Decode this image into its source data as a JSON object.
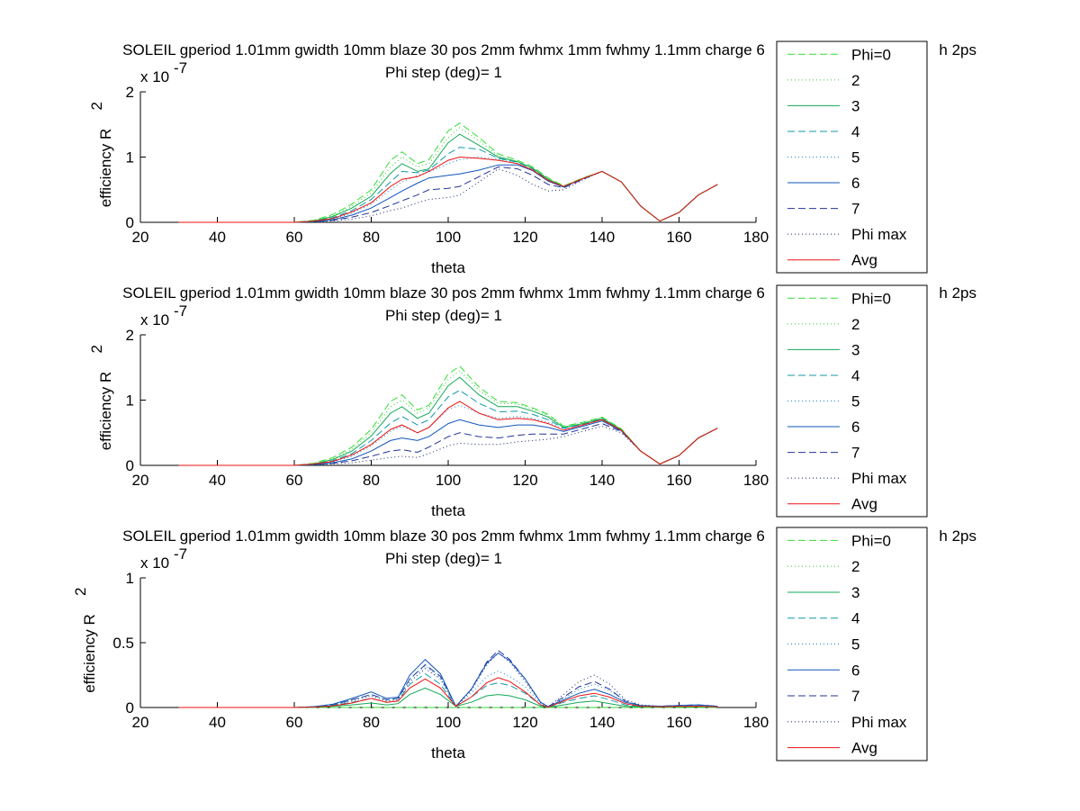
{
  "legend": [
    "Phi=0",
    "2",
    "3",
    "4",
    "5",
    "6",
    "7",
    "Phi max",
    "Avg"
  ],
  "series_styles": [
    {
      "color": "#33dd33",
      "dash": "8,4"
    },
    {
      "color": "#33cc33",
      "dash": "1,3"
    },
    {
      "color": "#11aa55",
      "dash": ""
    },
    {
      "color": "#1199aa",
      "dash": "8,4"
    },
    {
      "color": "#1188cc",
      "dash": "1,3"
    },
    {
      "color": "#1155bb",
      "dash": ""
    },
    {
      "color": "#223399",
      "dash": "8,4"
    },
    {
      "color": "#112266",
      "dash": "1,3"
    },
    {
      "color": "#ee1111",
      "dash": ""
    }
  ],
  "chart_data": [
    {
      "type": "line",
      "title": "SOLEIL gperiod 1.01mm gwidth 10mm blaze 30 pos 2mm fwhmx 1mm fwhmy 1.1mm charge 6",
      "title_suffix": "h 2ps",
      "subtitle": "Phi step (deg)= 1",
      "xlabel": "theta",
      "ylabel": "efficiency R",
      "ylabel_sup": "2",
      "y_exponent": "x 10",
      "y_exponent_sup": "-7",
      "xlim": [
        20,
        180
      ],
      "ylim": [
        0,
        2
      ],
      "xticks": [
        "20",
        "40",
        "60",
        "80",
        "100",
        "120",
        "140",
        "160",
        "180"
      ],
      "yticks": [
        "0",
        "1",
        "2"
      ],
      "x": [
        30,
        60,
        65,
        70,
        75,
        80,
        85,
        88,
        92,
        95,
        100,
        103,
        108,
        113,
        118,
        122,
        126,
        130,
        135,
        140,
        145,
        150,
        155,
        160,
        165,
        170
      ],
      "series": [
        {
          "name": "Phi=0",
          "values": [
            0,
            0,
            0.03,
            0.12,
            0.28,
            0.5,
            0.95,
            1.08,
            0.9,
            0.96,
            1.4,
            1.52,
            1.3,
            1.05,
            0.95,
            0.85,
            0.68,
            0.56,
            0.68,
            0.78,
            0.62,
            0.25,
            0.02,
            0.15,
            0.42,
            0.58
          ]
        },
        {
          "name": "2",
          "values": [
            0,
            0,
            0.03,
            0.1,
            0.25,
            0.45,
            0.85,
            1.0,
            0.85,
            0.9,
            1.3,
            1.45,
            1.25,
            1.02,
            0.93,
            0.83,
            0.67,
            0.55,
            0.67,
            0.78,
            0.62,
            0.25,
            0.02,
            0.15,
            0.42,
            0.58
          ]
        },
        {
          "name": "3",
          "values": [
            0,
            0,
            0.02,
            0.09,
            0.22,
            0.4,
            0.75,
            0.9,
            0.78,
            0.82,
            1.22,
            1.35,
            1.18,
            1.0,
            0.93,
            0.83,
            0.66,
            0.55,
            0.67,
            0.78,
            0.62,
            0.25,
            0.02,
            0.15,
            0.42,
            0.58
          ]
        },
        {
          "name": "4",
          "values": [
            0,
            0,
            0.02,
            0.07,
            0.18,
            0.35,
            0.62,
            0.78,
            0.76,
            0.8,
            1.05,
            1.15,
            1.12,
            0.98,
            0.92,
            0.82,
            0.65,
            0.55,
            0.67,
            0.78,
            0.62,
            0.25,
            0.02,
            0.15,
            0.42,
            0.58
          ]
        },
        {
          "name": "5",
          "values": [
            0,
            0,
            0.01,
            0.05,
            0.14,
            0.28,
            0.5,
            0.62,
            0.72,
            0.77,
            0.9,
            0.96,
            1.0,
            0.97,
            0.9,
            0.8,
            0.64,
            0.55,
            0.67,
            0.78,
            0.62,
            0.25,
            0.02,
            0.15,
            0.42,
            0.58
          ]
        },
        {
          "name": "6",
          "values": [
            0,
            0,
            0.01,
            0.04,
            0.11,
            0.22,
            0.38,
            0.48,
            0.6,
            0.68,
            0.72,
            0.74,
            0.8,
            0.88,
            0.88,
            0.79,
            0.63,
            0.54,
            0.67,
            0.78,
            0.62,
            0.25,
            0.02,
            0.15,
            0.42,
            0.58
          ]
        },
        {
          "name": "7",
          "values": [
            0,
            0,
            0.01,
            0.03,
            0.08,
            0.15,
            0.26,
            0.33,
            0.42,
            0.5,
            0.52,
            0.55,
            0.7,
            0.85,
            0.82,
            0.72,
            0.58,
            0.53,
            0.66,
            0.78,
            0.62,
            0.25,
            0.02,
            0.15,
            0.42,
            0.58
          ]
        },
        {
          "name": "Phi max",
          "values": [
            0,
            0,
            0.01,
            0.02,
            0.05,
            0.1,
            0.18,
            0.22,
            0.3,
            0.35,
            0.38,
            0.42,
            0.62,
            0.82,
            0.72,
            0.58,
            0.48,
            0.5,
            0.65,
            0.78,
            0.62,
            0.25,
            0.02,
            0.15,
            0.42,
            0.58
          ]
        },
        {
          "name": "Avg",
          "values": [
            0,
            0,
            0.02,
            0.06,
            0.16,
            0.3,
            0.55,
            0.66,
            0.7,
            0.78,
            0.95,
            1.0,
            0.98,
            0.95,
            0.9,
            0.8,
            0.64,
            0.55,
            0.67,
            0.78,
            0.62,
            0.25,
            0.02,
            0.15,
            0.42,
            0.58
          ]
        }
      ]
    },
    {
      "type": "line",
      "title": "SOLEIL gperiod 1.01mm gwidth 10mm blaze 30 pos 2mm fwhmx 1mm fwhmy 1.1mm charge 6",
      "title_suffix": "h 2ps",
      "subtitle": "Phi step (deg)= 1",
      "xlabel": "theta",
      "ylabel": "efficiency R",
      "ylabel_sup": "2",
      "y_exponent": "x 10",
      "y_exponent_sup": "-7",
      "xlim": [
        20,
        180
      ],
      "ylim": [
        0,
        2
      ],
      "xticks": [
        "20",
        "40",
        "60",
        "80",
        "100",
        "120",
        "140",
        "160",
        "180"
      ],
      "yticks": [
        "0",
        "1",
        "2"
      ],
      "x": [
        30,
        60,
        65,
        70,
        75,
        80,
        85,
        88,
        92,
        95,
        100,
        103,
        108,
        113,
        118,
        122,
        126,
        130,
        135,
        140,
        145,
        150,
        155,
        160,
        165,
        170
      ],
      "series": [
        {
          "name": "Phi=0",
          "values": [
            0,
            0,
            0.03,
            0.12,
            0.28,
            0.55,
            0.98,
            1.08,
            0.85,
            0.92,
            1.4,
            1.52,
            1.2,
            0.98,
            0.96,
            0.88,
            0.78,
            0.6,
            0.66,
            0.74,
            0.56,
            0.22,
            0.02,
            0.15,
            0.42,
            0.57
          ]
        },
        {
          "name": "2",
          "values": [
            0,
            0,
            0.03,
            0.1,
            0.25,
            0.5,
            0.9,
            1.0,
            0.8,
            0.88,
            1.32,
            1.45,
            1.15,
            0.95,
            0.94,
            0.86,
            0.76,
            0.59,
            0.65,
            0.73,
            0.55,
            0.22,
            0.02,
            0.15,
            0.42,
            0.57
          ]
        },
        {
          "name": "3",
          "values": [
            0,
            0,
            0.02,
            0.09,
            0.22,
            0.45,
            0.8,
            0.9,
            0.72,
            0.8,
            1.22,
            1.35,
            1.08,
            0.9,
            0.9,
            0.83,
            0.74,
            0.58,
            0.64,
            0.72,
            0.55,
            0.22,
            0.02,
            0.15,
            0.42,
            0.57
          ]
        },
        {
          "name": "4",
          "values": [
            0,
            0,
            0.02,
            0.07,
            0.18,
            0.38,
            0.65,
            0.75,
            0.62,
            0.7,
            1.05,
            1.15,
            0.95,
            0.82,
            0.83,
            0.78,
            0.7,
            0.57,
            0.63,
            0.71,
            0.54,
            0.22,
            0.02,
            0.15,
            0.42,
            0.57
          ]
        },
        {
          "name": "5",
          "values": [
            0,
            0,
            0.01,
            0.05,
            0.14,
            0.3,
            0.52,
            0.6,
            0.5,
            0.58,
            0.86,
            0.92,
            0.8,
            0.72,
            0.75,
            0.72,
            0.66,
            0.56,
            0.62,
            0.7,
            0.54,
            0.22,
            0.02,
            0.15,
            0.42,
            0.57
          ]
        },
        {
          "name": "6",
          "values": [
            0,
            0,
            0.01,
            0.04,
            0.1,
            0.22,
            0.38,
            0.42,
            0.38,
            0.44,
            0.64,
            0.7,
            0.62,
            0.58,
            0.62,
            0.62,
            0.58,
            0.52,
            0.6,
            0.68,
            0.53,
            0.22,
            0.02,
            0.15,
            0.42,
            0.57
          ]
        },
        {
          "name": "7",
          "values": [
            0,
            0,
            0.01,
            0.03,
            0.07,
            0.14,
            0.22,
            0.24,
            0.2,
            0.28,
            0.44,
            0.5,
            0.44,
            0.42,
            0.46,
            0.48,
            0.48,
            0.48,
            0.56,
            0.64,
            0.52,
            0.22,
            0.02,
            0.15,
            0.42,
            0.57
          ]
        },
        {
          "name": "Phi max",
          "values": [
            0,
            0,
            0.01,
            0.02,
            0.04,
            0.08,
            0.12,
            0.14,
            0.12,
            0.18,
            0.3,
            0.34,
            0.32,
            0.32,
            0.36,
            0.38,
            0.4,
            0.44,
            0.52,
            0.6,
            0.5,
            0.22,
            0.02,
            0.15,
            0.42,
            0.57
          ]
        },
        {
          "name": "Avg",
          "values": [
            0,
            0,
            0.02,
            0.06,
            0.16,
            0.32,
            0.55,
            0.62,
            0.5,
            0.58,
            0.88,
            0.98,
            0.8,
            0.7,
            0.72,
            0.7,
            0.64,
            0.54,
            0.62,
            0.7,
            0.54,
            0.22,
            0.02,
            0.15,
            0.42,
            0.57
          ]
        }
      ]
    },
    {
      "type": "line",
      "title": "SOLEIL gperiod 1.01mm gwidth 10mm blaze 30 pos 2mm fwhmx 1mm fwhmy 1.1mm charge 6",
      "title_suffix": "h 2ps",
      "subtitle": "Phi step (deg)= 1",
      "xlabel": "theta",
      "ylabel": "efficiency R",
      "ylabel_sup": "2",
      "y_exponent": "x 10",
      "y_exponent_sup": "-7",
      "xlim": [
        20,
        180
      ],
      "ylim": [
        0,
        1
      ],
      "xticks": [
        "20",
        "40",
        "60",
        "80",
        "100",
        "120",
        "140",
        "160",
        "180"
      ],
      "yticks": [
        "0",
        "0.5",
        "1"
      ],
      "x": [
        30,
        60,
        65,
        70,
        75,
        80,
        84,
        87,
        90,
        94,
        98,
        102,
        106,
        110,
        113,
        116,
        120,
        124,
        126,
        130,
        134,
        138,
        142,
        146,
        150,
        155,
        160,
        165,
        170
      ],
      "series": [
        {
          "name": "Phi=0",
          "values": [
            0,
            0,
            0,
            0,
            0,
            0,
            0,
            0,
            0,
            0,
            0,
            0,
            0,
            0,
            0,
            0,
            0,
            0,
            0,
            0,
            0,
            0,
            0,
            0,
            0,
            0,
            0,
            0,
            0
          ]
        },
        {
          "name": "2",
          "values": [
            0,
            0,
            0,
            0,
            0,
            0,
            0,
            0,
            0,
            0,
            0,
            0,
            0,
            0,
            0,
            0,
            0,
            0,
            0,
            0,
            0,
            0,
            0,
            0,
            0,
            0,
            0,
            0,
            0
          ]
        },
        {
          "name": "3",
          "values": [
            0,
            0,
            0.002,
            0.01,
            0.02,
            0.035,
            0.02,
            0.03,
            0.1,
            0.15,
            0.1,
            0.01,
            0.04,
            0.09,
            0.1,
            0.09,
            0.06,
            0.01,
            0.002,
            0.02,
            0.04,
            0.05,
            0.03,
            0.01,
            0.005,
            0.003,
            0.005,
            0.005,
            0.003
          ]
        },
        {
          "name": "4",
          "values": [
            0,
            0,
            0.004,
            0.015,
            0.04,
            0.07,
            0.04,
            0.05,
            0.18,
            0.26,
            0.18,
            0.01,
            0.08,
            0.17,
            0.19,
            0.17,
            0.11,
            0.02,
            0.004,
            0.04,
            0.07,
            0.09,
            0.06,
            0.02,
            0.01,
            0.005,
            0.008,
            0.01,
            0.005
          ]
        },
        {
          "name": "5",
          "values": [
            0,
            0,
            0.005,
            0.02,
            0.06,
            0.1,
            0.06,
            0.07,
            0.22,
            0.32,
            0.23,
            0.01,
            0.11,
            0.24,
            0.28,
            0.24,
            0.16,
            0.03,
            0.005,
            0.07,
            0.14,
            0.18,
            0.13,
            0.05,
            0.015,
            0.008,
            0.012,
            0.015,
            0.008
          ]
        },
        {
          "name": "6",
          "values": [
            0,
            0,
            0.006,
            0.025,
            0.07,
            0.12,
            0.07,
            0.08,
            0.25,
            0.37,
            0.26,
            0.01,
            0.14,
            0.34,
            0.42,
            0.36,
            0.22,
            0.04,
            0.006,
            0.06,
            0.11,
            0.14,
            0.1,
            0.04,
            0.015,
            0.01,
            0.015,
            0.02,
            0.01
          ]
        },
        {
          "name": "7",
          "values": [
            0,
            0,
            0.006,
            0.02,
            0.06,
            0.1,
            0.06,
            0.07,
            0.22,
            0.33,
            0.24,
            0.01,
            0.14,
            0.35,
            0.44,
            0.37,
            0.22,
            0.04,
            0.006,
            0.08,
            0.16,
            0.2,
            0.14,
            0.05,
            0.015,
            0.01,
            0.015,
            0.02,
            0.01
          ]
        },
        {
          "name": "Phi max",
          "values": [
            0,
            0,
            0.005,
            0.018,
            0.05,
            0.09,
            0.05,
            0.06,
            0.2,
            0.3,
            0.22,
            0.01,
            0.13,
            0.33,
            0.42,
            0.35,
            0.2,
            0.04,
            0.006,
            0.1,
            0.2,
            0.25,
            0.18,
            0.06,
            0.02,
            0.01,
            0.015,
            0.02,
            0.01
          ]
        },
        {
          "name": "Avg",
          "values": [
            0,
            0,
            0.003,
            0.012,
            0.035,
            0.07,
            0.04,
            0.05,
            0.15,
            0.22,
            0.15,
            0.01,
            0.08,
            0.19,
            0.23,
            0.2,
            0.12,
            0.02,
            0.003,
            0.05,
            0.09,
            0.11,
            0.08,
            0.03,
            0.01,
            0.005,
            0.008,
            0.01,
            0.005
          ]
        }
      ]
    }
  ]
}
